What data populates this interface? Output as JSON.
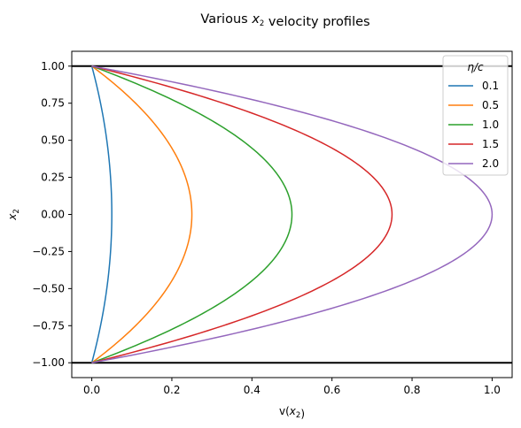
{
  "chart_data": {
    "type": "line",
    "title": "Various x₂ velocity profiles",
    "xlabel": "v(x₂)",
    "ylabel": "x₂",
    "xlim": [
      -0.05,
      1.05
    ],
    "ylim": [
      -1.1,
      1.1
    ],
    "xticks": [
      "0.0",
      "0.2",
      "0.4",
      "0.6",
      "0.8",
      "1.0"
    ],
    "yticks": [
      "−1.00",
      "−0.75",
      "−0.50",
      "−0.25",
      "0.00",
      "0.25",
      "0.50",
      "0.75",
      "1.00"
    ],
    "legend": {
      "title": "η/c",
      "position": "top-right"
    },
    "reference_lines": [
      {
        "y": 1.0,
        "color": "#000000"
      },
      {
        "y": -1.0,
        "color": "#000000"
      }
    ],
    "profile": "v = (η/c)·(1 − x₂²)/2",
    "x2": [
      -1.0,
      -0.8,
      -0.6,
      -0.4,
      -0.2,
      0.0,
      0.2,
      0.4,
      0.6,
      0.8,
      1.0
    ],
    "series": [
      {
        "name": "0.1",
        "color": "#1f77b4",
        "values": [
          0.0,
          0.018,
          0.032,
          0.042,
          0.048,
          0.05,
          0.048,
          0.042,
          0.032,
          0.018,
          0.0
        ]
      },
      {
        "name": "0.5",
        "color": "#ff7f0e",
        "values": [
          0.0,
          0.09,
          0.16,
          0.21,
          0.24,
          0.25,
          0.24,
          0.21,
          0.16,
          0.09,
          0.0
        ]
      },
      {
        "name": "1.0",
        "color": "#2ca02c",
        "values": [
          0.0,
          0.18,
          0.32,
          0.42,
          0.48,
          0.5,
          0.48,
          0.42,
          0.32,
          0.18,
          0.0
        ]
      },
      {
        "name": "1.5",
        "color": "#d62728",
        "values": [
          0.0,
          0.27,
          0.48,
          0.63,
          0.72,
          0.75,
          0.72,
          0.63,
          0.48,
          0.27,
          0.0
        ]
      },
      {
        "name": "2.0",
        "color": "#9467bd",
        "values": [
          0.0,
          0.36,
          0.64,
          0.84,
          0.96,
          1.0,
          0.96,
          0.84,
          0.64,
          0.36,
          0.0
        ]
      }
    ]
  }
}
